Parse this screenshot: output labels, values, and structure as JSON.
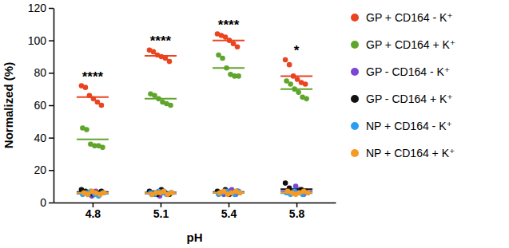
{
  "chart_data": {
    "type": "scatter",
    "x_label": "pH",
    "y_label": "Normalized (%)",
    "categories": [
      "4.8",
      "5.1",
      "5.4",
      "5.8"
    ],
    "ylim": [
      0,
      120
    ],
    "yticks": [
      0,
      20,
      40,
      60,
      80,
      100,
      120
    ],
    "legend": "right",
    "series": [
      {
        "name": "GP + CD164 - K⁺",
        "color": "#e9431f",
        "marker": "circle",
        "values": [
          [
            72,
            71,
            66,
            64,
            62,
            60
          ],
          [
            94,
            93,
            91,
            90,
            89,
            87
          ],
          [
            104,
            103,
            102,
            100,
            98,
            96
          ],
          [
            88,
            85,
            78,
            76,
            74,
            73
          ]
        ],
        "means": [
          65,
          90.5,
          100,
          78
        ]
      },
      {
        "name": "GP + CD164 + K⁺",
        "color": "#5fa52b",
        "marker": "circle",
        "values": [
          [
            46,
            45,
            36,
            35,
            35,
            34
          ],
          [
            67,
            66,
            64,
            62,
            61,
            60
          ],
          [
            91,
            89,
            83,
            79,
            78,
            78
          ],
          [
            75,
            73,
            70,
            68,
            65,
            64
          ]
        ],
        "means": [
          39,
          64,
          83,
          70
        ]
      },
      {
        "name": "GP - CD164 - K⁺",
        "color": "#7b45d6",
        "marker": "circle",
        "values": [
          [
            6,
            5,
            4,
            7,
            5,
            6
          ],
          [
            5,
            6,
            4,
            7,
            5,
            6
          ],
          [
            6,
            5,
            7,
            8,
            5,
            6
          ],
          [
            7,
            6,
            10,
            8,
            5,
            6
          ]
        ],
        "means": [
          5.5,
          5.5,
          6.2,
          7
        ]
      },
      {
        "name": "GP - CD164 + K⁺",
        "color": "#111111",
        "marker": "circle",
        "values": [
          [
            8,
            7,
            6,
            5,
            6,
            7
          ],
          [
            7,
            6,
            5,
            8,
            6,
            5
          ],
          [
            7,
            6,
            8,
            5,
            6,
            7
          ],
          [
            12,
            9,
            7,
            6,
            8,
            7
          ]
        ],
        "means": [
          6.5,
          6.2,
          6.5,
          8.2
        ]
      },
      {
        "name": "NP + CD164 - K⁺",
        "color": "#2b9ef2",
        "marker": "circle",
        "values": [
          [
            5,
            6,
            7,
            5,
            4,
            6
          ],
          [
            6,
            5,
            7,
            6,
            5,
            6
          ],
          [
            5,
            6,
            7,
            6,
            5,
            7
          ],
          [
            6,
            5,
            7,
            6,
            5,
            6
          ]
        ],
        "means": [
          5.5,
          5.8,
          6,
          5.8
        ]
      },
      {
        "name": "NP + CD164 + K⁺",
        "color": "#f59a22",
        "marker": "circle",
        "values": [
          [
            6,
            5,
            7,
            6,
            5,
            6
          ],
          [
            5,
            6,
            6,
            7,
            5,
            6
          ],
          [
            6,
            7,
            5,
            6,
            7,
            6
          ],
          [
            7,
            6,
            5,
            6,
            7,
            6
          ]
        ],
        "means": [
          6,
          5.8,
          6.2,
          6.2
        ]
      }
    ],
    "annotations": [
      {
        "x": "4.8",
        "text": "****"
      },
      {
        "x": "5.1",
        "text": "****"
      },
      {
        "x": "5.4",
        "text": "****"
      },
      {
        "x": "5.8",
        "text": "*"
      }
    ]
  }
}
